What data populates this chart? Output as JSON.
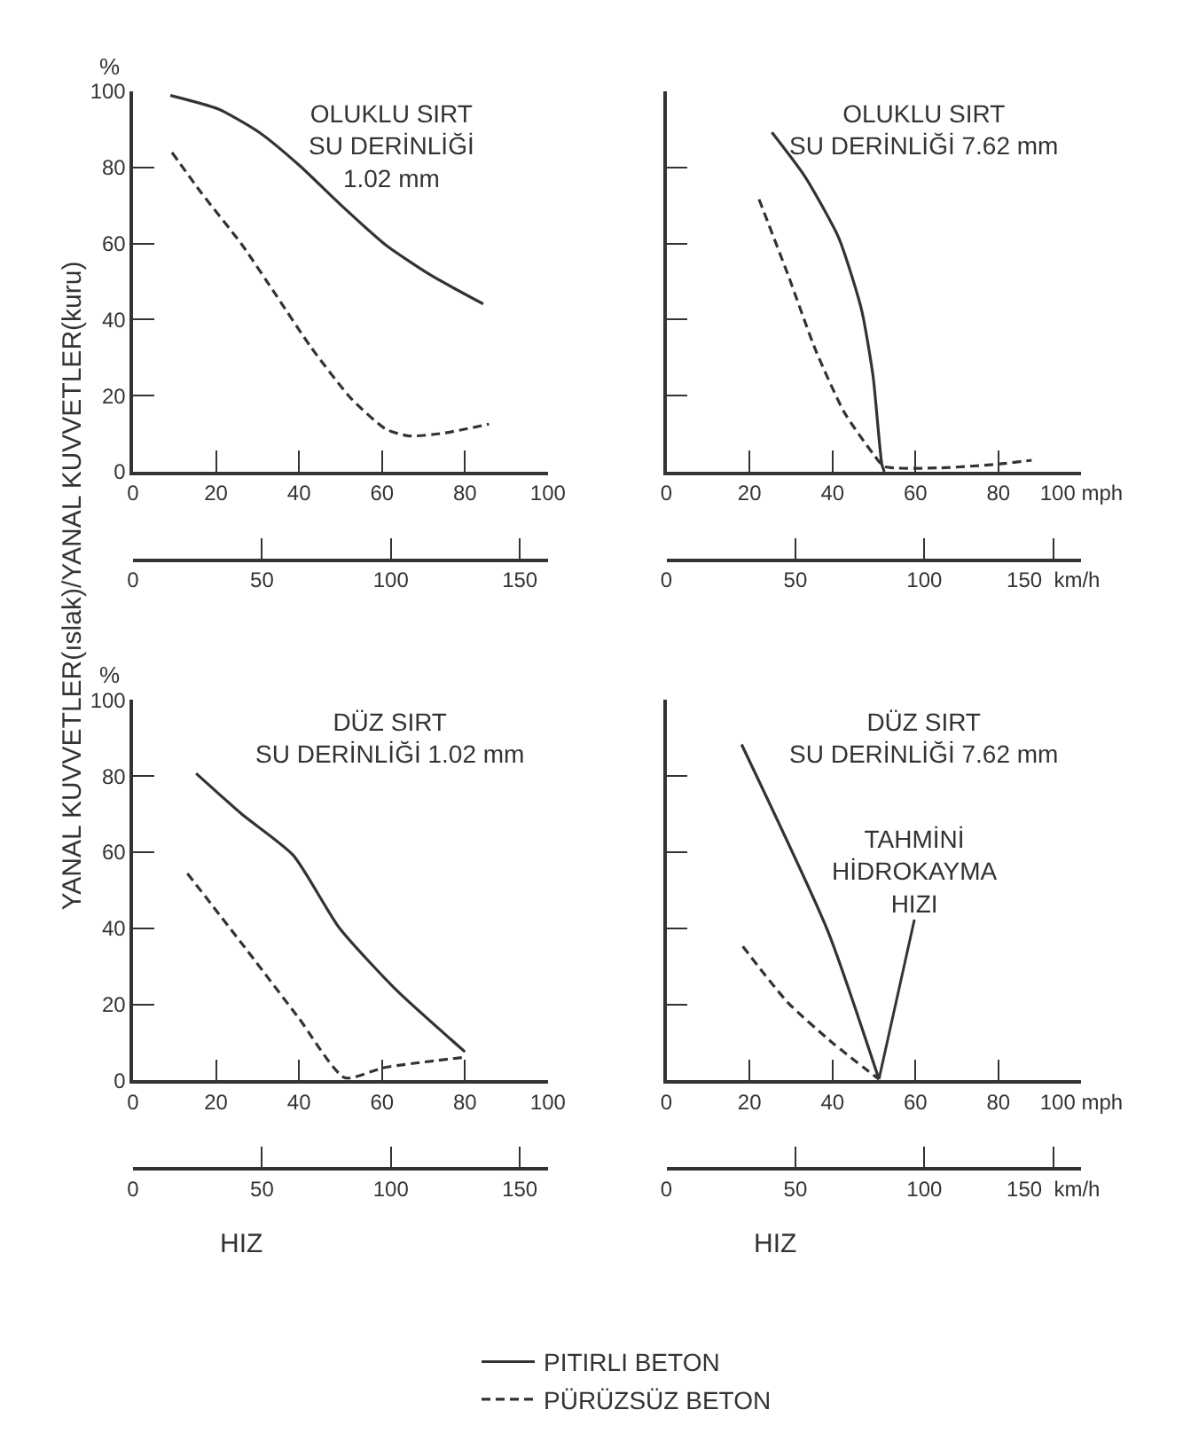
{
  "chart_data": [
    {
      "type": "line",
      "title": "OLUKLU SIRT\nSU DERİNLİĞİ\n1.02 mm",
      "ylabel": "YANAL KUVVETLER(ıslak)/YANAL KUVVETLER(kuru)",
      "annotations": [
        "%"
      ],
      "xlim": [
        0,
        100
      ],
      "xticks": [
        0,
        20,
        40,
        60,
        80,
        100
      ],
      "x2lim": [
        0,
        160.9
      ],
      "x2ticks": [
        0,
        50,
        100,
        150
      ],
      "ylim": [
        0,
        100
      ],
      "yticks": [
        0,
        20,
        40,
        60,
        80,
        100
      ],
      "series": [
        {
          "color": "#333333",
          "line_style": "solid",
          "x": [
            9,
            20.6,
            30.4,
            40.1,
            49.8,
            60.9,
            72,
            84.4
          ],
          "values": [
            98.9,
            95.3,
            89.2,
            80.5,
            70.4,
            59.6,
            51.5,
            44.1
          ]
        },
        {
          "color": "#333333",
          "line_style": "dashed",
          "x": [
            9.4,
            16.6,
            26.3,
            34.6,
            42.9,
            52.6,
            60.9,
            66.4,
            74.7,
            85.8
          ],
          "values": [
            83.9,
            73.1,
            59.6,
            46.2,
            32.7,
            19.2,
            11.2,
            9.4,
            10.1,
            12.5
          ]
        }
      ],
      "grid": false,
      "marker": "none"
    },
    {
      "type": "line",
      "title": "OLUKLU SIRT\nSU DERİNLİĞİ 7.62 mm",
      "tick_labels": "x",
      "xlim": [
        0,
        100
      ],
      "xticks": [
        0,
        20,
        40,
        60,
        80,
        {
          "value": 100,
          "label": "100 mph"
        }
      ],
      "x2lim": [
        0,
        160.9
      ],
      "x2ticks": [
        0,
        50,
        100,
        {
          "value": 150,
          "label": "150  km/h"
        }
      ],
      "ylim": [
        0,
        100
      ],
      "yticks": [
        0,
        20,
        40,
        60,
        80,
        100
      ],
      "series": [
        {
          "color": "#333333",
          "line_style": "solid",
          "x": [
            25.4,
            33.3,
            41.5,
            47,
            49.8,
            51.9,
            52.5
          ],
          "values": [
            89.2,
            77.7,
            61.5,
            42.6,
            25,
            2,
            0
          ]
        },
        {
          "color": "#333333",
          "line_style": "dashed",
          "x": [
            22.3,
            29.2,
            36,
            42.9,
            49.8,
            52.5,
            66,
            80,
            88
          ],
          "values": [
            71.6,
            52,
            31.8,
            15.5,
            4.7,
            1.4,
            1,
            2,
            3
          ]
        }
      ],
      "grid": false,
      "marker": "none"
    },
    {
      "type": "line",
      "title": "DÜZ SIRT\nSU DERİNLİĞİ 1.02 mm",
      "xlabel": "HIZ",
      "annotations": [
        "%"
      ],
      "xlim": [
        0,
        100
      ],
      "xticks": [
        0,
        20,
        40,
        60,
        80,
        100
      ],
      "x2lim": [
        0,
        160.9
      ],
      "x2ticks": [
        0,
        50,
        100,
        150
      ],
      "ylim": [
        0,
        100
      ],
      "yticks": [
        0,
        20,
        40,
        60,
        80,
        100
      ],
      "series": [
        {
          "color": "#333333",
          "line_style": "solid",
          "x": [
            15.2,
            26.2,
            38.6,
            49.7,
            63.4,
            80
          ],
          "values": [
            80.7,
            70,
            59.2,
            40.1,
            23.8,
            7.5
          ]
        },
        {
          "color": "#333333",
          "line_style": "dashed",
          "x": [
            13.1,
            26.2,
            40,
            51,
            60.7,
            80
          ],
          "values": [
            54.4,
            36,
            16.3,
            0.7,
            3.4,
            6.1
          ]
        }
      ],
      "grid": false,
      "marker": "none"
    },
    {
      "type": "line",
      "title": "DÜZ SIRT\nSU DERİNLİĞİ 7.62 mm",
      "xlabel": "HIZ",
      "tick_labels": "x",
      "annotations": [
        {
          "text": "TAHMİNİ\nHİDROKAYMA\nHIZI",
          "x": 51.2,
          "y": 0.3
        }
      ],
      "xlim": [
        0,
        100
      ],
      "xticks": [
        0,
        20,
        40,
        60,
        80,
        {
          "value": 100,
          "label": "100 mph"
        }
      ],
      "x2lim": [
        0,
        160.9
      ],
      "x2ticks": [
        0,
        50,
        100,
        {
          "value": 150,
          "label": "150  km/h"
        }
      ],
      "ylim": [
        0,
        100
      ],
      "yticks": [
        0,
        20,
        40,
        60,
        80,
        100
      ],
      "series": [
        {
          "name": "PITIRLI BETON",
          "color": "#333333",
          "line_style": "solid",
          "x": [
            18.1,
            38.9,
            51.2
          ],
          "values": [
            88.3,
            39.2,
            0.3
          ]
        },
        {
          "name": "PÜRÜZSÜZ BETON",
          "color": "#333333",
          "line_style": "dashed",
          "x": [
            18.4,
            29.3,
            40.2,
            51.2
          ],
          "values": [
            35.2,
            20.4,
            9.7,
            0.3
          ]
        }
      ],
      "grid": false,
      "marker": "none",
      "legend": "bottom"
    }
  ]
}
